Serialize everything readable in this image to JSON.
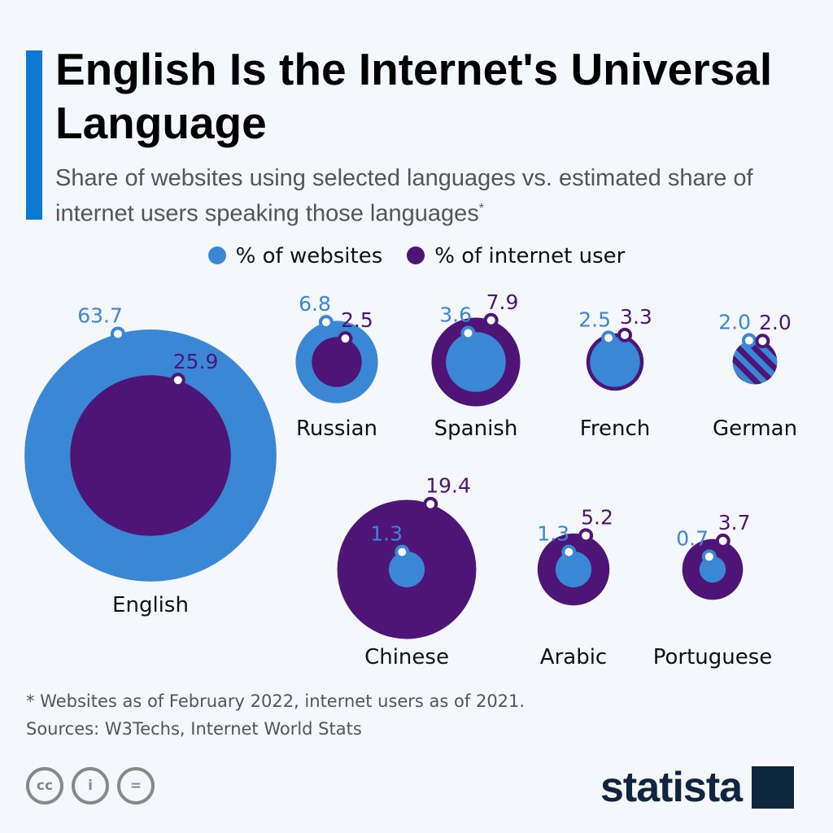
{
  "title": "English Is the Internet's Universal Language",
  "subtitle": "Share of websites using selected languages vs. estimated share of internet users speaking those languages",
  "subtitle_mark": "*",
  "footnote": "* Websites as of February 2022, internet users as of 2021.",
  "sources": "Sources: W3Techs, Internet World Stats",
  "logo": "statista",
  "license_icons": [
    "cc-icon",
    "attribution-icon",
    "no-derivatives-icon"
  ],
  "chart_data": {
    "type": "bubble",
    "legend": [
      {
        "name": "% of websites",
        "color": "#3a87d6"
      },
      {
        "name": "% of internet user",
        "color": "#4e1577"
      }
    ],
    "legend_position": "top",
    "categories": [
      "English",
      "Russian",
      "Spanish",
      "French",
      "German",
      "Chinese",
      "Arabic",
      "Portuguese"
    ],
    "series": [
      {
        "name": "% of websites",
        "values": [
          63.7,
          6.8,
          3.6,
          2.5,
          2.0,
          1.3,
          1.3,
          0.7
        ]
      },
      {
        "name": "% of internet user",
        "values": [
          25.9,
          2.5,
          7.9,
          3.3,
          2.0,
          19.4,
          5.2,
          3.7
        ]
      }
    ],
    "value_labels": {
      "websites": [
        "63.7",
        "6.8",
        "3.6",
        "2.5",
        "2.0",
        "1.3",
        "1.3",
        "0.7"
      ],
      "users": [
        "25.9",
        "2.5",
        "7.9",
        "3.3",
        "2.0",
        "19.4",
        "5.2",
        "3.7"
      ]
    }
  }
}
